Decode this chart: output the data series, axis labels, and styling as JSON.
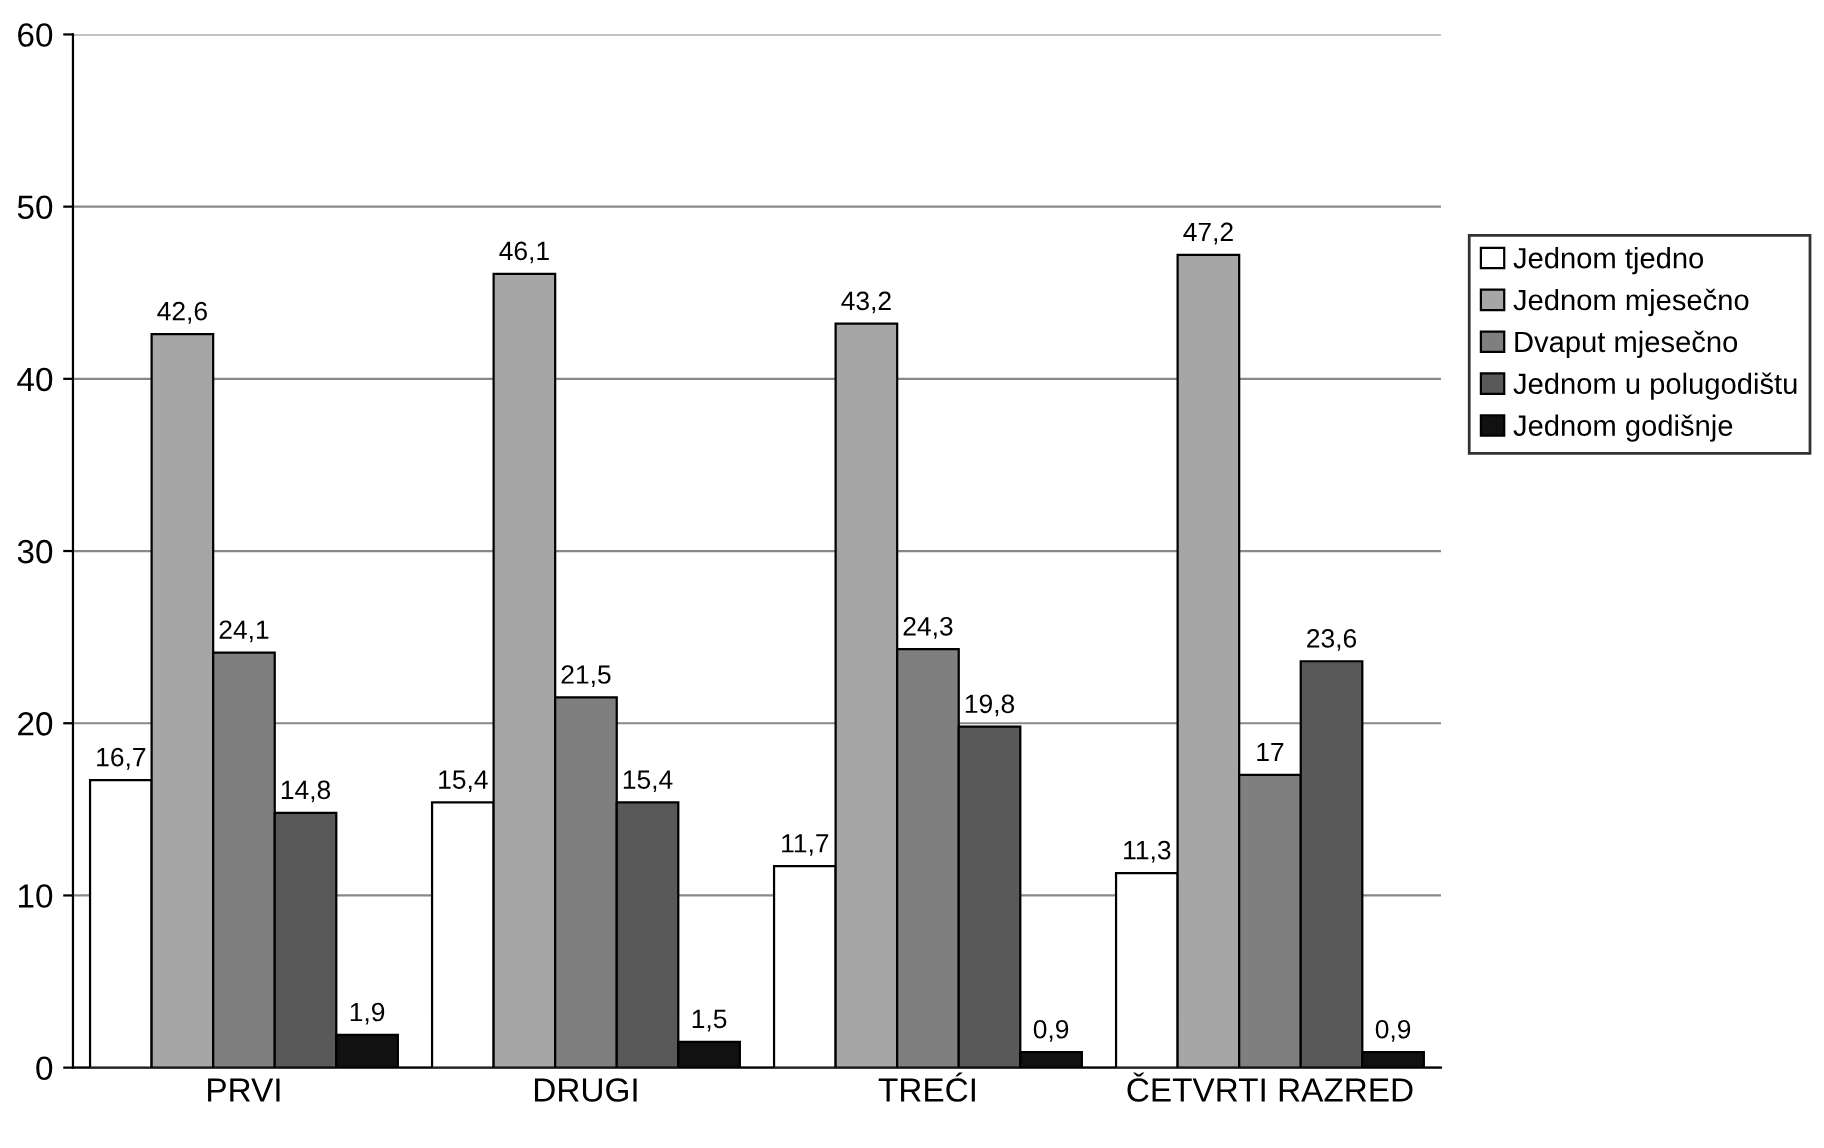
{
  "chart_data": {
    "type": "bar",
    "categories": [
      "PRVI",
      "DRUGI",
      "TREĆI",
      "ČETVRTI RAZRED"
    ],
    "series": [
      {
        "name": "Jednom tjedno",
        "color": "#ffffff",
        "values": [
          16.7,
          15.4,
          11.7,
          11.3
        ],
        "value_labels": [
          "16,7",
          "15,4",
          "11,7",
          "11,3"
        ]
      },
      {
        "name": "Jednom mjesečno",
        "color": "#a6a6a6",
        "values": [
          42.6,
          46.1,
          43.2,
          47.2
        ],
        "value_labels": [
          "42,6",
          "46,1",
          "43,2",
          "47,2"
        ]
      },
      {
        "name": "Dvaput mjesečno",
        "color": "#7f7f7f",
        "values": [
          24.1,
          21.5,
          24.3,
          17
        ],
        "value_labels": [
          "24,1",
          "21,5",
          "24,3",
          "17"
        ]
      },
      {
        "name": "Jednom u polugodištu",
        "color": "#595959",
        "values": [
          14.8,
          15.4,
          19.8,
          23.6
        ],
        "value_labels": [
          "14,8",
          "15,4",
          "19,8",
          "23,6"
        ]
      },
      {
        "name": "Jednom godišnje",
        "color": "#111111",
        "values": [
          1.9,
          1.5,
          0.9,
          0.9
        ],
        "value_labels": [
          "1,9",
          "1,5",
          "0,9",
          "0,9"
        ]
      }
    ],
    "ylim": [
      0,
      60
    ],
    "yticks": [
      0,
      10,
      20,
      30,
      40,
      50,
      60
    ],
    "grid": "y",
    "legend": "right"
  }
}
